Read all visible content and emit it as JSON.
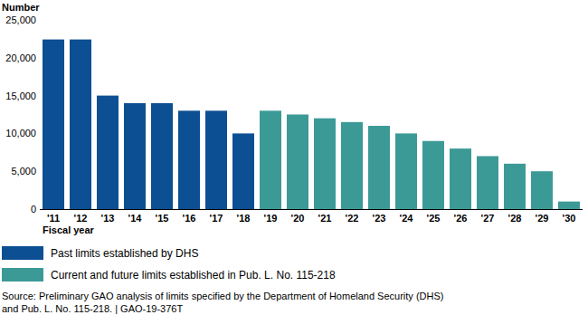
{
  "chart_data": {
    "type": "bar",
    "y_label": "Number",
    "x_label": "Fiscal year",
    "categories": [
      "'11",
      "'12",
      "'13",
      "'14",
      "'15",
      "'16",
      "'17",
      "'18",
      "'19",
      "'20",
      "'21",
      "'22",
      "'23",
      "'24",
      "'25",
      "'26",
      "'27",
      "'28",
      "'29",
      "'30"
    ],
    "series": [
      {
        "name": "Past limits established by DHS",
        "color": "#0c4f93",
        "values": [
          22417,
          22416,
          15000,
          14000,
          14000,
          12999,
          12998,
          9998,
          null,
          null,
          null,
          null,
          null,
          null,
          null,
          null,
          null,
          null,
          null,
          null
        ]
      },
      {
        "name": "Current and future limits established in Pub. L. No. 115-218",
        "color": "#3c9a96",
        "values": [
          null,
          null,
          null,
          null,
          null,
          null,
          null,
          null,
          13000,
          12500,
          12000,
          11500,
          11000,
          10000,
          9000,
          8000,
          7000,
          6000,
          5000,
          1000
        ]
      }
    ],
    "ylim": [
      0,
      25000
    ],
    "yticks": [
      0,
      {
        "value": 5000,
        "label": "5,000"
      },
      {
        "value": 10000,
        "label": "10,000"
      },
      {
        "value": 15000,
        "label": "15,000"
      },
      {
        "value": 20000,
        "label": "20,000"
      },
      {
        "value": 25000,
        "label": "25,000"
      }
    ],
    "grid": false,
    "legend": "bottom-left",
    "source": [
      "Source: Preliminary GAO analysis of limits specified by the Department of Homeland Security (DHS)",
      "and Pub. L. No. 115-218. | GAO-19-376T"
    ]
  }
}
